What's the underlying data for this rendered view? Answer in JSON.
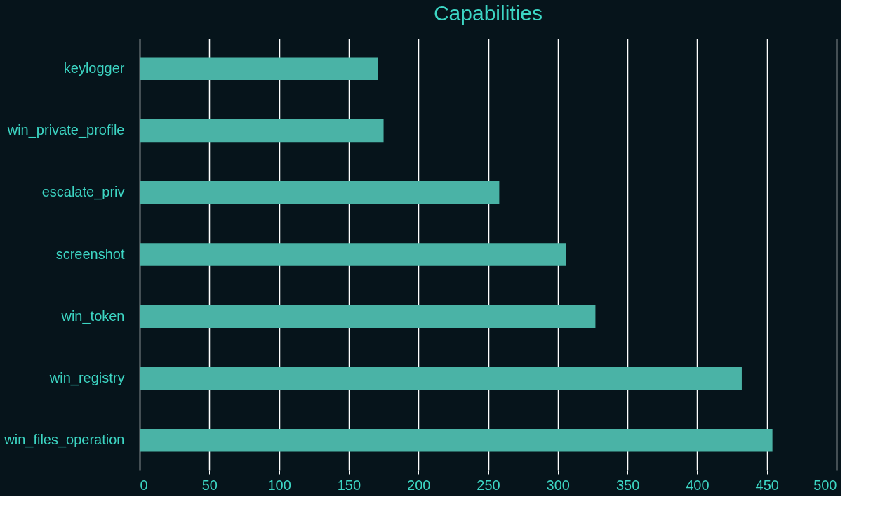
{
  "chart_data": {
    "type": "bar",
    "title": "Capabilities",
    "orientation": "horizontal",
    "categories": [
      "keylogger",
      "win_private_profile",
      "escalate_priv",
      "screenshot",
      "win_token",
      "win_registry",
      "win_files_operation"
    ],
    "values": [
      171,
      175,
      258,
      306,
      327,
      432,
      454
    ],
    "color": "#4ab3a6",
    "xlim": [
      0,
      500
    ],
    "xticks": [
      0,
      50,
      100,
      150,
      200,
      250,
      300,
      350,
      400,
      450,
      500
    ],
    "grid": "x"
  }
}
